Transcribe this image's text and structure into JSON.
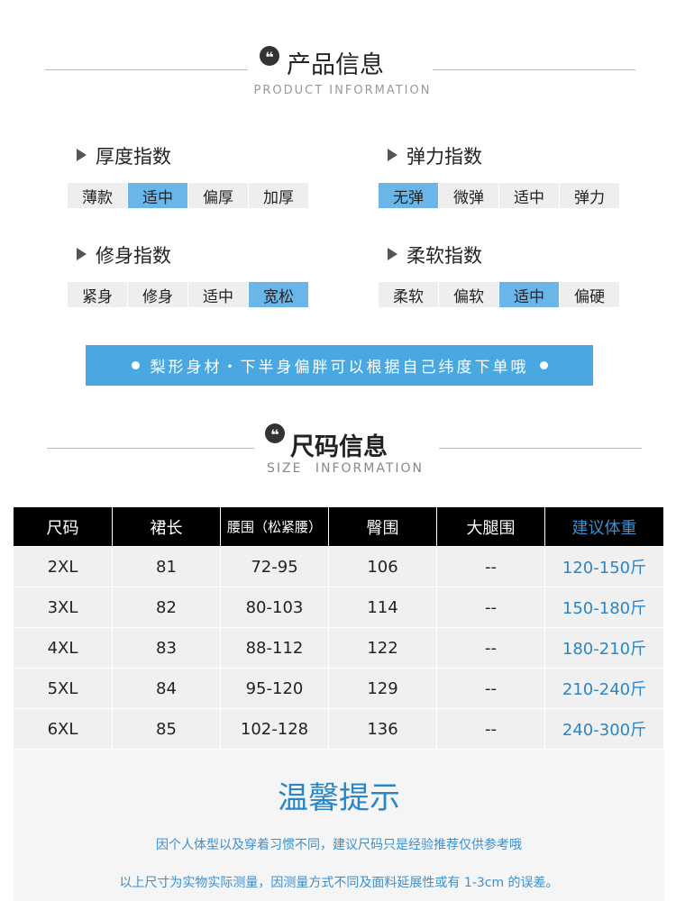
{
  "product_info": {
    "title": "产品信息",
    "subtitle": "PRODUCT INFORMATION"
  },
  "attributes": [
    {
      "label": "厚度指数",
      "options": [
        "薄款",
        "适中",
        "偏厚",
        "加厚"
      ],
      "selected": 1
    },
    {
      "label": "弹力指数",
      "options": [
        "无弹",
        "微弹",
        "适中",
        "弹力"
      ],
      "selected": 0
    },
    {
      "label": "修身指数",
      "options": [
        "紧身",
        "修身",
        "适中",
        "宽松"
      ],
      "selected": 3
    },
    {
      "label": "柔软指数",
      "options": [
        "柔软",
        "偏软",
        "适中",
        "偏硬"
      ],
      "selected": 2
    }
  ],
  "banner": "梨形身材・下半身偏胖可以根据自己纬度下单哦",
  "size_info": {
    "title": "尺码信息",
    "subtitle": "SIZE INFORMATION"
  },
  "table": {
    "header": [
      "尺码",
      "裙长",
      "腰围（松紧腰）",
      "臀围",
      "大腿围",
      "建议体重"
    ],
    "rows": [
      [
        "2XL",
        "81",
        "72-95",
        "106",
        "--",
        "120-150斤"
      ],
      [
        "3XL",
        "82",
        "80-103",
        "114",
        "--",
        "150-180斤"
      ],
      [
        "4XL",
        "83",
        "88-112",
        "122",
        "--",
        "180-210斤"
      ],
      [
        "5XL",
        "84",
        "95-120",
        "129",
        "--",
        "210-240斤"
      ],
      [
        "6XL",
        "85",
        "102-128",
        "136",
        "--",
        "240-300斤"
      ]
    ]
  },
  "tips": {
    "title": "温馨提示",
    "lines": [
      "因个人体型以及穿着习惯不同，建议尺码只是经验推荐仅供参考哦",
      "以上尺寸为实物实际测量，因测量方式不同及面料延展性或有 1-3cm 的误差。"
    ]
  }
}
